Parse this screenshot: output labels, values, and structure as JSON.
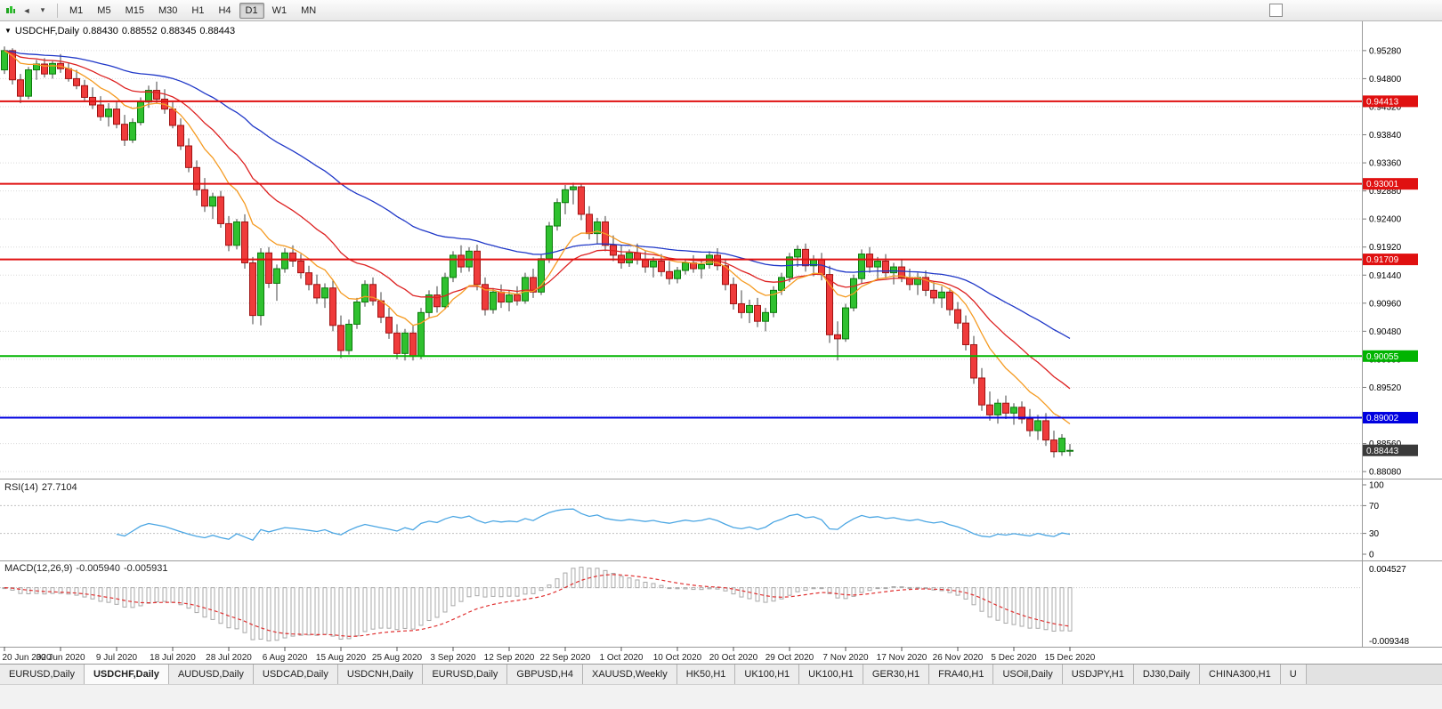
{
  "toolbar": {
    "timeframes": [
      {
        "label": "M1",
        "active": false
      },
      {
        "label": "M5",
        "active": false
      },
      {
        "label": "M15",
        "active": false
      },
      {
        "label": "M30",
        "active": false
      },
      {
        "label": "H1",
        "active": false
      },
      {
        "label": "H4",
        "active": false
      },
      {
        "label": "D1",
        "active": true
      },
      {
        "label": "W1",
        "active": false
      },
      {
        "label": "MN",
        "active": false
      }
    ]
  },
  "chart": {
    "info": {
      "symbol": "USDCHF,Daily",
      "open": "0.88430",
      "high": "0.88552",
      "low": "0.88345",
      "close": "0.88443"
    }
  },
  "chart_data": {
    "type": "candlestick",
    "symbol": "USDCHF",
    "timeframe": "Daily",
    "y_min": 0.8796,
    "y_max": 0.9578,
    "price_ticks": [
      0.9528,
      0.948,
      0.9432,
      0.9384,
      0.9336,
      0.9288,
      0.924,
      0.9192,
      0.9144,
      0.9096,
      0.9048,
      0.9,
      0.8952,
      0.8904,
      0.8856,
      0.8808
    ],
    "x_tick_indices": [
      0,
      7,
      14,
      21,
      28,
      35,
      42,
      49,
      56,
      63,
      70,
      77,
      84,
      91,
      98,
      105,
      112,
      119,
      126,
      133
    ],
    "x_tick_labels": [
      "20 Jun 2020",
      "30 Jun 2020",
      "9 Jul 2020",
      "18 Jul 2020",
      "28 Jul 2020",
      "6 Aug 2020",
      "15 Aug 2020",
      "25 Aug 2020",
      "3 Sep 2020",
      "12 Sep 2020",
      "22 Sep 2020",
      "1 Oct 2020",
      "10 Oct 2020",
      "20 Oct 2020",
      "29 Oct 2020",
      "7 Nov 2020",
      "17 Nov 2020",
      "26 Nov 2020",
      "5 Dec 2020",
      "15 Dec 2020"
    ],
    "ohlc": [
      [
        0.9495,
        0.9535,
        0.9488,
        0.9528
      ],
      [
        0.9528,
        0.9532,
        0.947,
        0.9478
      ],
      [
        0.9478,
        0.9488,
        0.9438,
        0.945
      ],
      [
        0.945,
        0.95,
        0.9445,
        0.9495
      ],
      [
        0.9495,
        0.9512,
        0.9478,
        0.9505
      ],
      [
        0.9505,
        0.9515,
        0.9482,
        0.9488
      ],
      [
        0.9488,
        0.951,
        0.948,
        0.9506
      ],
      [
        0.9506,
        0.9522,
        0.949,
        0.9497
      ],
      [
        0.9497,
        0.9508,
        0.9475,
        0.948
      ],
      [
        0.948,
        0.9495,
        0.9462,
        0.9468
      ],
      [
        0.9468,
        0.9478,
        0.944,
        0.9448
      ],
      [
        0.9448,
        0.9465,
        0.9428,
        0.9435
      ],
      [
        0.9435,
        0.945,
        0.9408,
        0.9415
      ],
      [
        0.9415,
        0.9438,
        0.9398,
        0.9428
      ],
      [
        0.9428,
        0.944,
        0.9395,
        0.9402
      ],
      [
        0.9402,
        0.9418,
        0.9365,
        0.9375
      ],
      [
        0.9375,
        0.9412,
        0.937,
        0.9405
      ],
      [
        0.9405,
        0.9448,
        0.94,
        0.944
      ],
      [
        0.944,
        0.9468,
        0.943,
        0.946
      ],
      [
        0.946,
        0.9475,
        0.9438,
        0.9445
      ],
      [
        0.9445,
        0.9462,
        0.942,
        0.9428
      ],
      [
        0.9428,
        0.944,
        0.9395,
        0.94
      ],
      [
        0.94,
        0.9412,
        0.9358,
        0.9365
      ],
      [
        0.9365,
        0.9378,
        0.932,
        0.9328
      ],
      [
        0.9328,
        0.934,
        0.928,
        0.929
      ],
      [
        0.929,
        0.931,
        0.9252,
        0.9262
      ],
      [
        0.9262,
        0.9285,
        0.924,
        0.9278
      ],
      [
        0.9278,
        0.9288,
        0.9225,
        0.9232
      ],
      [
        0.9232,
        0.9245,
        0.9185,
        0.9195
      ],
      [
        0.9195,
        0.924,
        0.9188,
        0.9235
      ],
      [
        0.9235,
        0.9248,
        0.9155,
        0.9165
      ],
      [
        0.9165,
        0.9175,
        0.906,
        0.9075
      ],
      [
        0.9075,
        0.919,
        0.9058,
        0.9182
      ],
      [
        0.9182,
        0.9192,
        0.9122,
        0.913
      ],
      [
        0.913,
        0.9162,
        0.91,
        0.9155
      ],
      [
        0.9155,
        0.919,
        0.9148,
        0.9182
      ],
      [
        0.9182,
        0.9195,
        0.9158,
        0.9168
      ],
      [
        0.9168,
        0.918,
        0.9138,
        0.9148
      ],
      [
        0.9148,
        0.916,
        0.9118,
        0.9128
      ],
      [
        0.9128,
        0.9145,
        0.9095,
        0.9105
      ],
      [
        0.9105,
        0.913,
        0.9088,
        0.9122
      ],
      [
        0.9122,
        0.9135,
        0.9048,
        0.9058
      ],
      [
        0.9058,
        0.9075,
        0.9002,
        0.9015
      ],
      [
        0.9015,
        0.9068,
        0.9008,
        0.906
      ],
      [
        0.906,
        0.9105,
        0.9052,
        0.9098
      ],
      [
        0.9098,
        0.9135,
        0.909,
        0.9128
      ],
      [
        0.9128,
        0.914,
        0.9092,
        0.91
      ],
      [
        0.91,
        0.9115,
        0.9062,
        0.9072
      ],
      [
        0.9072,
        0.9088,
        0.9035,
        0.9045
      ],
      [
        0.9045,
        0.906,
        0.9,
        0.901
      ],
      [
        0.901,
        0.9052,
        0.8998,
        0.9045
      ],
      [
        0.9045,
        0.9058,
        0.8998,
        0.9005
      ],
      [
        0.9005,
        0.9088,
        0.9,
        0.908
      ],
      [
        0.908,
        0.9118,
        0.9072,
        0.911
      ],
      [
        0.911,
        0.9125,
        0.908,
        0.909
      ],
      [
        0.909,
        0.9148,
        0.9085,
        0.914
      ],
      [
        0.914,
        0.9185,
        0.9132,
        0.9178
      ],
      [
        0.9178,
        0.9195,
        0.9148,
        0.9158
      ],
      [
        0.9158,
        0.9192,
        0.915,
        0.9185
      ],
      [
        0.9185,
        0.9196,
        0.9118,
        0.9128
      ],
      [
        0.9128,
        0.914,
        0.9075,
        0.9085
      ],
      [
        0.9085,
        0.9122,
        0.9078,
        0.9115
      ],
      [
        0.9115,
        0.9128,
        0.9088,
        0.9098
      ],
      [
        0.9098,
        0.9118,
        0.9082,
        0.911
      ],
      [
        0.911,
        0.9125,
        0.9092,
        0.91
      ],
      [
        0.91,
        0.9148,
        0.9095,
        0.914
      ],
      [
        0.914,
        0.9155,
        0.9105,
        0.9115
      ],
      [
        0.9115,
        0.918,
        0.911,
        0.9172
      ],
      [
        0.9172,
        0.9235,
        0.9165,
        0.9228
      ],
      [
        0.9228,
        0.9275,
        0.922,
        0.9268
      ],
      [
        0.9268,
        0.9298,
        0.9248,
        0.929
      ],
      [
        0.929,
        0.9302,
        0.9265,
        0.9295
      ],
      [
        0.9295,
        0.93,
        0.9238,
        0.9248
      ],
      [
        0.9248,
        0.9262,
        0.9205,
        0.9215
      ],
      [
        0.9215,
        0.9242,
        0.9198,
        0.9235
      ],
      [
        0.9235,
        0.9245,
        0.9185,
        0.9195
      ],
      [
        0.9195,
        0.9212,
        0.9168,
        0.9178
      ],
      [
        0.9178,
        0.9195,
        0.9155,
        0.9165
      ],
      [
        0.9165,
        0.9188,
        0.9158,
        0.9182
      ],
      [
        0.9182,
        0.9198,
        0.9162,
        0.917
      ],
      [
        0.917,
        0.9185,
        0.9148,
        0.9158
      ],
      [
        0.9158,
        0.9175,
        0.914,
        0.9168
      ],
      [
        0.9168,
        0.918,
        0.9142,
        0.915
      ],
      [
        0.915,
        0.9168,
        0.9128,
        0.9138
      ],
      [
        0.9138,
        0.9158,
        0.913,
        0.9152
      ],
      [
        0.9152,
        0.9172,
        0.9145,
        0.9165
      ],
      [
        0.9165,
        0.9178,
        0.9148,
        0.9155
      ],
      [
        0.9155,
        0.917,
        0.9138,
        0.9162
      ],
      [
        0.9162,
        0.9185,
        0.9155,
        0.9178
      ],
      [
        0.9178,
        0.919,
        0.9152,
        0.916
      ],
      [
        0.916,
        0.9172,
        0.9118,
        0.9128
      ],
      [
        0.9128,
        0.914,
        0.9085,
        0.9095
      ],
      [
        0.9095,
        0.9118,
        0.907,
        0.908
      ],
      [
        0.908,
        0.9102,
        0.9062,
        0.9092
      ],
      [
        0.9092,
        0.9105,
        0.9055,
        0.9065
      ],
      [
        0.9065,
        0.9088,
        0.9048,
        0.908
      ],
      [
        0.908,
        0.9125,
        0.9072,
        0.9118
      ],
      [
        0.9118,
        0.9148,
        0.911,
        0.914
      ],
      [
        0.914,
        0.9182,
        0.9132,
        0.9175
      ],
      [
        0.9175,
        0.9195,
        0.9158,
        0.9188
      ],
      [
        0.9188,
        0.9198,
        0.915,
        0.916
      ],
      [
        0.916,
        0.9178,
        0.9142,
        0.917
      ],
      [
        0.917,
        0.9182,
        0.9135,
        0.9145
      ],
      [
        0.9145,
        0.916,
        0.9028,
        0.9042
      ],
      [
        0.9042,
        0.9065,
        0.8998,
        0.9035
      ],
      [
        0.9035,
        0.9095,
        0.903,
        0.9088
      ],
      [
        0.9088,
        0.9145,
        0.9082,
        0.9138
      ],
      [
        0.9138,
        0.9188,
        0.913,
        0.918
      ],
      [
        0.918,
        0.9192,
        0.9148,
        0.9158
      ],
      [
        0.9158,
        0.9175,
        0.9135,
        0.9168
      ],
      [
        0.9168,
        0.918,
        0.9138,
        0.9148
      ],
      [
        0.9148,
        0.9165,
        0.9128,
        0.9158
      ],
      [
        0.9158,
        0.917,
        0.9132,
        0.914
      ],
      [
        0.914,
        0.9155,
        0.9118,
        0.9128
      ],
      [
        0.9128,
        0.9148,
        0.911,
        0.914
      ],
      [
        0.914,
        0.9152,
        0.9108,
        0.9118
      ],
      [
        0.9118,
        0.9132,
        0.9095,
        0.9105
      ],
      [
        0.9105,
        0.9125,
        0.9088,
        0.9115
      ],
      [
        0.9115,
        0.9122,
        0.9075,
        0.9085
      ],
      [
        0.9085,
        0.9098,
        0.9052,
        0.9062
      ],
      [
        0.9062,
        0.9075,
        0.9015,
        0.9025
      ],
      [
        0.9025,
        0.904,
        0.8958,
        0.8968
      ],
      [
        0.8968,
        0.8985,
        0.8912,
        0.8922
      ],
      [
        0.8922,
        0.8945,
        0.8895,
        0.8905
      ],
      [
        0.8905,
        0.8932,
        0.889,
        0.8925
      ],
      [
        0.8925,
        0.8938,
        0.8898,
        0.8908
      ],
      [
        0.8908,
        0.8925,
        0.8888,
        0.8918
      ],
      [
        0.8918,
        0.8928,
        0.889,
        0.8898
      ],
      [
        0.8898,
        0.8915,
        0.8868,
        0.8878
      ],
      [
        0.8878,
        0.8905,
        0.8862,
        0.8895
      ],
      [
        0.8895,
        0.8908,
        0.8852,
        0.8862
      ],
      [
        0.8862,
        0.8878,
        0.8832,
        0.8842
      ],
      [
        0.8842,
        0.8872,
        0.8835,
        0.8865
      ],
      [
        0.8843,
        0.88552,
        0.88345,
        0.88443
      ]
    ],
    "hlines": [
      {
        "price": 0.94413,
        "label": "0.94413",
        "color": "#e01010"
      },
      {
        "price": 0.93001,
        "label": "0.93001",
        "color": "#e01010"
      },
      {
        "price": 0.91709,
        "label": "0.91709",
        "color": "#e01010"
      },
      {
        "price": 0.90055,
        "label": "0.90055",
        "color": "#00b400"
      },
      {
        "price": 0.89002,
        "label": "0.89002",
        "color": "#0000e0"
      }
    ],
    "current_price": {
      "price": 0.88443,
      "label": "0.88443",
      "bg": "#3a3a3a"
    },
    "moving_averages": [
      {
        "period": 10,
        "color": "#f59b22"
      },
      {
        "period": 21,
        "color": "#dd2222"
      },
      {
        "period": 50,
        "color": "#2038c8"
      }
    ],
    "colors": {
      "up": "#2fc12f",
      "up_border": "#0b7a0b",
      "down": "#ef3b3b",
      "down_border": "#a01212",
      "wick": "#444444",
      "grid": "#d9d9d9"
    }
  },
  "rsi": {
    "name": "RSI(14)",
    "value": "27.7104",
    "period": 14,
    "levels": [
      100,
      70,
      30,
      0
    ],
    "line_color": "#4ba6e3"
  },
  "macd": {
    "name": "MACD(12,26,9)",
    "value_main": "-0.005940",
    "value_signal": "-0.005931",
    "scale_top": "0.004527",
    "scale_bottom": "-0.009348",
    "histogram_color": "#a8a8a8",
    "signal_color": "#e03030"
  },
  "tabs": [
    {
      "label": "EURUSD,Daily",
      "active": false
    },
    {
      "label": "USDCHF,Daily",
      "active": true
    },
    {
      "label": "AUDUSD,Daily",
      "active": false
    },
    {
      "label": "USDCAD,Daily",
      "active": false
    },
    {
      "label": "USDCNH,Daily",
      "active": false
    },
    {
      "label": "EURUSD,Daily",
      "active": false
    },
    {
      "label": "GBPUSD,H4",
      "active": false
    },
    {
      "label": "XAUUSD,Weekly",
      "active": false
    },
    {
      "label": "HK50,H1",
      "active": false
    },
    {
      "label": "UK100,H1",
      "active": false
    },
    {
      "label": "UK100,H1",
      "active": false
    },
    {
      "label": "GER30,H1",
      "active": false
    },
    {
      "label": "FRA40,H1",
      "active": false
    },
    {
      "label": "USOil,Daily",
      "active": false
    },
    {
      "label": "USDJPY,H1",
      "active": false
    },
    {
      "label": "DJ30,Daily",
      "active": false
    },
    {
      "label": "CHINA300,H1",
      "active": false
    },
    {
      "label": "U",
      "active": false
    }
  ]
}
